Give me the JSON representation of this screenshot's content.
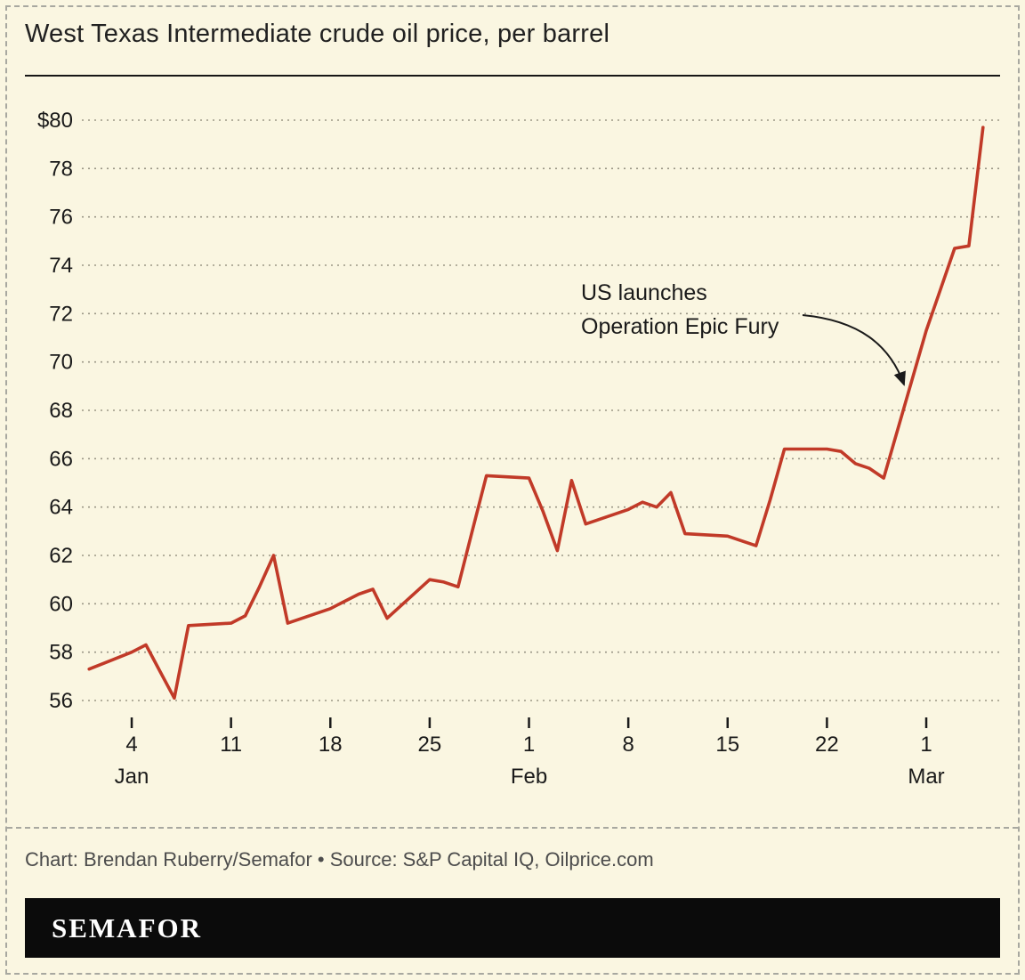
{
  "title": "West Texas Intermediate crude oil price, per barrel",
  "annotation": {
    "line1": "US launches",
    "line2": "Operation Epic Fury"
  },
  "caption": "Chart: Brendan Ruberry/Semafor • Source: S&P Capital IQ, Oilprice.com",
  "logo": "SEMAFOR",
  "colors": {
    "line": "#c13a28",
    "background": "#faf6e1",
    "grid": "#9b9786",
    "tick": "#1a1a1a",
    "annotation": "#1a1a1a",
    "caption_text": "#4c4c4c",
    "logo_bar": "#0b0b0b"
  },
  "chart_data": {
    "type": "line",
    "title": "West Texas Intermediate crude oil price, per barrel",
    "xlabel": "",
    "ylabel": "",
    "ylim": [
      56,
      80
    ],
    "y_tick_step": 2,
    "y_top_tick_label": "$80",
    "grid": "horizontal-dashed",
    "legend": "none",
    "x_ticks": [
      {
        "label": "4",
        "day": 3
      },
      {
        "label": "11",
        "day": 10
      },
      {
        "label": "18",
        "day": 17
      },
      {
        "label": "25",
        "day": 24
      },
      {
        "label": "1",
        "day": 31
      },
      {
        "label": "8",
        "day": 38
      },
      {
        "label": "15",
        "day": 45
      },
      {
        "label": "22",
        "day": 52
      },
      {
        "label": "1",
        "day": 59
      }
    ],
    "x_month_labels": [
      {
        "label": "Jan",
        "day": 3
      },
      {
        "label": "Feb",
        "day": 31
      },
      {
        "label": "Mar",
        "day": 59
      }
    ],
    "series": [
      {
        "name": "WTI crude oil price ($ per barrel)",
        "points": [
          [
            "Jan 1",
            57.3
          ],
          [
            "Jan 4",
            58.0
          ],
          [
            "Jan 5",
            58.3
          ],
          [
            "Jan 6",
            57.2
          ],
          [
            "Jan 7",
            56.1
          ],
          [
            "Jan 8",
            59.1
          ],
          [
            "Jan 11",
            59.2
          ],
          [
            "Jan 12",
            59.5
          ],
          [
            "Jan 13",
            60.7
          ],
          [
            "Jan 14",
            62.0
          ],
          [
            "Jan 15",
            59.2
          ],
          [
            "Jan 18",
            59.8
          ],
          [
            "Jan 19",
            60.1
          ],
          [
            "Jan 20",
            60.4
          ],
          [
            "Jan 21",
            60.6
          ],
          [
            "Jan 22",
            59.4
          ],
          [
            "Jan 25",
            61.0
          ],
          [
            "Jan 26",
            60.9
          ],
          [
            "Jan 27",
            60.7
          ],
          [
            "Jan 28",
            63.0
          ],
          [
            "Jan 29",
            65.3
          ],
          [
            "Feb 1",
            65.2
          ],
          [
            "Feb 2",
            63.8
          ],
          [
            "Feb 3",
            62.2
          ],
          [
            "Feb 4",
            65.1
          ],
          [
            "Feb 5",
            63.3
          ],
          [
            "Feb 8",
            63.9
          ],
          [
            "Feb 9",
            64.2
          ],
          [
            "Feb 10",
            64.0
          ],
          [
            "Feb 11",
            64.6
          ],
          [
            "Feb 12",
            62.9
          ],
          [
            "Feb 15",
            62.8
          ],
          [
            "Feb 16",
            62.6
          ],
          [
            "Feb 17",
            62.4
          ],
          [
            "Feb 18",
            64.3
          ],
          [
            "Feb 19",
            66.4
          ],
          [
            "Feb 22",
            66.4
          ],
          [
            "Feb 23",
            66.3
          ],
          [
            "Feb 24",
            65.8
          ],
          [
            "Feb 25",
            65.6
          ],
          [
            "Feb 26",
            65.2
          ],
          [
            "Mar 1",
            71.3
          ],
          [
            "Mar 2",
            73.0
          ],
          [
            "Mar 3",
            74.7
          ],
          [
            "Mar 4",
            74.8
          ],
          [
            "Mar 5",
            79.7
          ]
        ]
      }
    ],
    "annotation": {
      "text": [
        "US launches",
        "Operation Epic Fury"
      ],
      "points_to_value": 68.5,
      "points_to_date": "Feb 27"
    }
  }
}
